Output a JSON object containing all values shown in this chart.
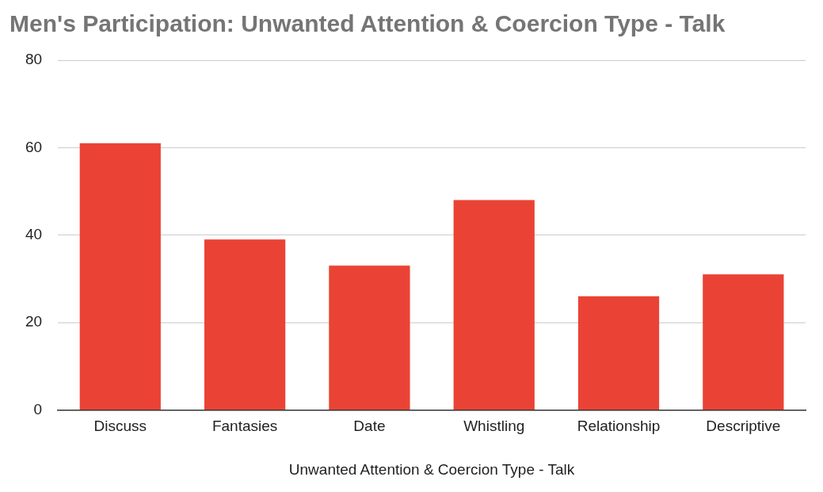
{
  "chart_data": {
    "type": "bar",
    "title": "Men's Participation: Unwanted Attention & Coercion Type - Talk",
    "xlabel": "Unwanted Attention & Coercion Type - Talk",
    "categories": [
      "Discuss",
      "Fantasies",
      "Date",
      "Whistling",
      "Relationship",
      "Descriptive"
    ],
    "values": [
      61,
      39,
      33,
      48,
      26,
      31
    ],
    "color": "#ea4335",
    "ylim": [
      0,
      80
    ],
    "yticks": [
      0,
      20,
      40,
      60,
      80
    ],
    "grid": "y",
    "legend": false
  }
}
